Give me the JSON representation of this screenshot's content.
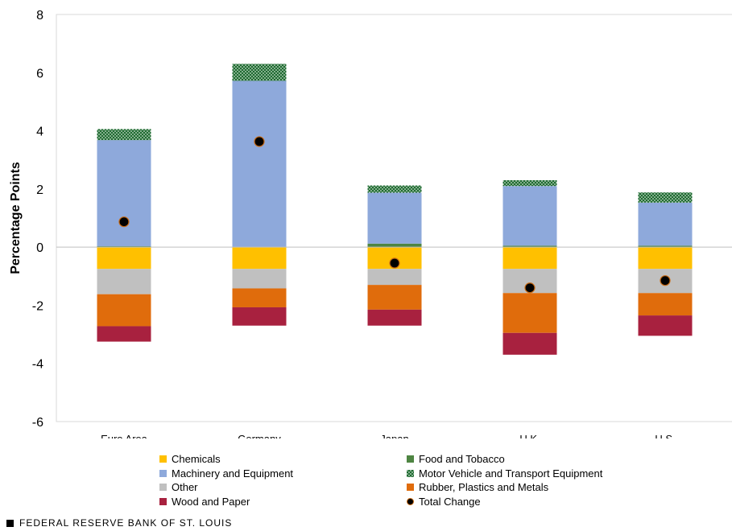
{
  "chart_data": {
    "type": "bar",
    "stacked": true,
    "title": "",
    "xlabel": "",
    "ylabel": "Percentage Points",
    "ylim": [
      -6,
      8
    ],
    "yticks": [
      -6,
      -4,
      -2,
      0,
      2,
      4,
      6,
      8
    ],
    "categories": [
      "Euro Area",
      "Germany",
      "Japan",
      "U.K.",
      "U.S."
    ],
    "series": [
      {
        "name": "Chemicals",
        "color": "#FFC000",
        "pattern": "solid",
        "values": [
          -0.75,
          -0.75,
          -0.75,
          -0.75,
          -0.75
        ]
      },
      {
        "name": "Food and Tobacco",
        "color": "#4E8542",
        "pattern": "solid",
        "values": [
          0.03,
          0.0,
          0.12,
          0.05,
          0.05
        ]
      },
      {
        "name": "Machinery and Equipment",
        "color": "#8EA9DB",
        "pattern": "solid",
        "values": [
          3.65,
          5.72,
          1.75,
          2.05,
          1.48
        ]
      },
      {
        "name": "Motor Vehicle and Transport Equipment",
        "color": "#1E6B30",
        "pattern": "dots",
        "values": [
          0.38,
          0.58,
          0.25,
          0.2,
          0.35
        ]
      },
      {
        "name": "Other",
        "color": "#C0C0C0",
        "pattern": "solid",
        "values": [
          -0.87,
          -0.67,
          -0.55,
          -0.83,
          -0.83
        ]
      },
      {
        "name": "Rubber, Plastics and Metals",
        "color": "#E06C0C",
        "pattern": "solid",
        "values": [
          -1.1,
          -0.65,
          -0.85,
          -1.37,
          -0.77
        ]
      },
      {
        "name": "Wood and Paper",
        "color": "#A8213F",
        "pattern": "solid",
        "values": [
          -0.53,
          -0.63,
          -0.55,
          -0.75,
          -0.7
        ]
      }
    ],
    "total_change": {
      "name": "Total Change",
      "values": [
        0.87,
        3.63,
        -0.55,
        -1.4,
        -1.15
      ]
    },
    "source": "FEDERAL RESERVE BANK OF ST. LOUIS"
  },
  "legend": {
    "items": [
      {
        "label": "Chemicals",
        "color": "#FFC000",
        "kind": "solid"
      },
      {
        "label": "Food and Tobacco",
        "color": "#4E8542",
        "kind": "solid"
      },
      {
        "label": "Machinery and Equipment",
        "color": "#8EA9DB",
        "kind": "solid"
      },
      {
        "label": "Motor Vehicle and Transport Equipment",
        "color": "#1E6B30",
        "kind": "dots"
      },
      {
        "label": "Other",
        "color": "#C0C0C0",
        "kind": "solid"
      },
      {
        "label": "Rubber, Plastics and Metals",
        "color": "#E06C0C",
        "kind": "solid"
      },
      {
        "label": "Wood and Paper",
        "color": "#A8213F",
        "kind": "solid"
      },
      {
        "label": "Total Change",
        "color": "#000000",
        "kind": "dot"
      }
    ]
  },
  "footer": {
    "text": "FEDERAL RESERVE BANK OF ST. LOUIS"
  }
}
